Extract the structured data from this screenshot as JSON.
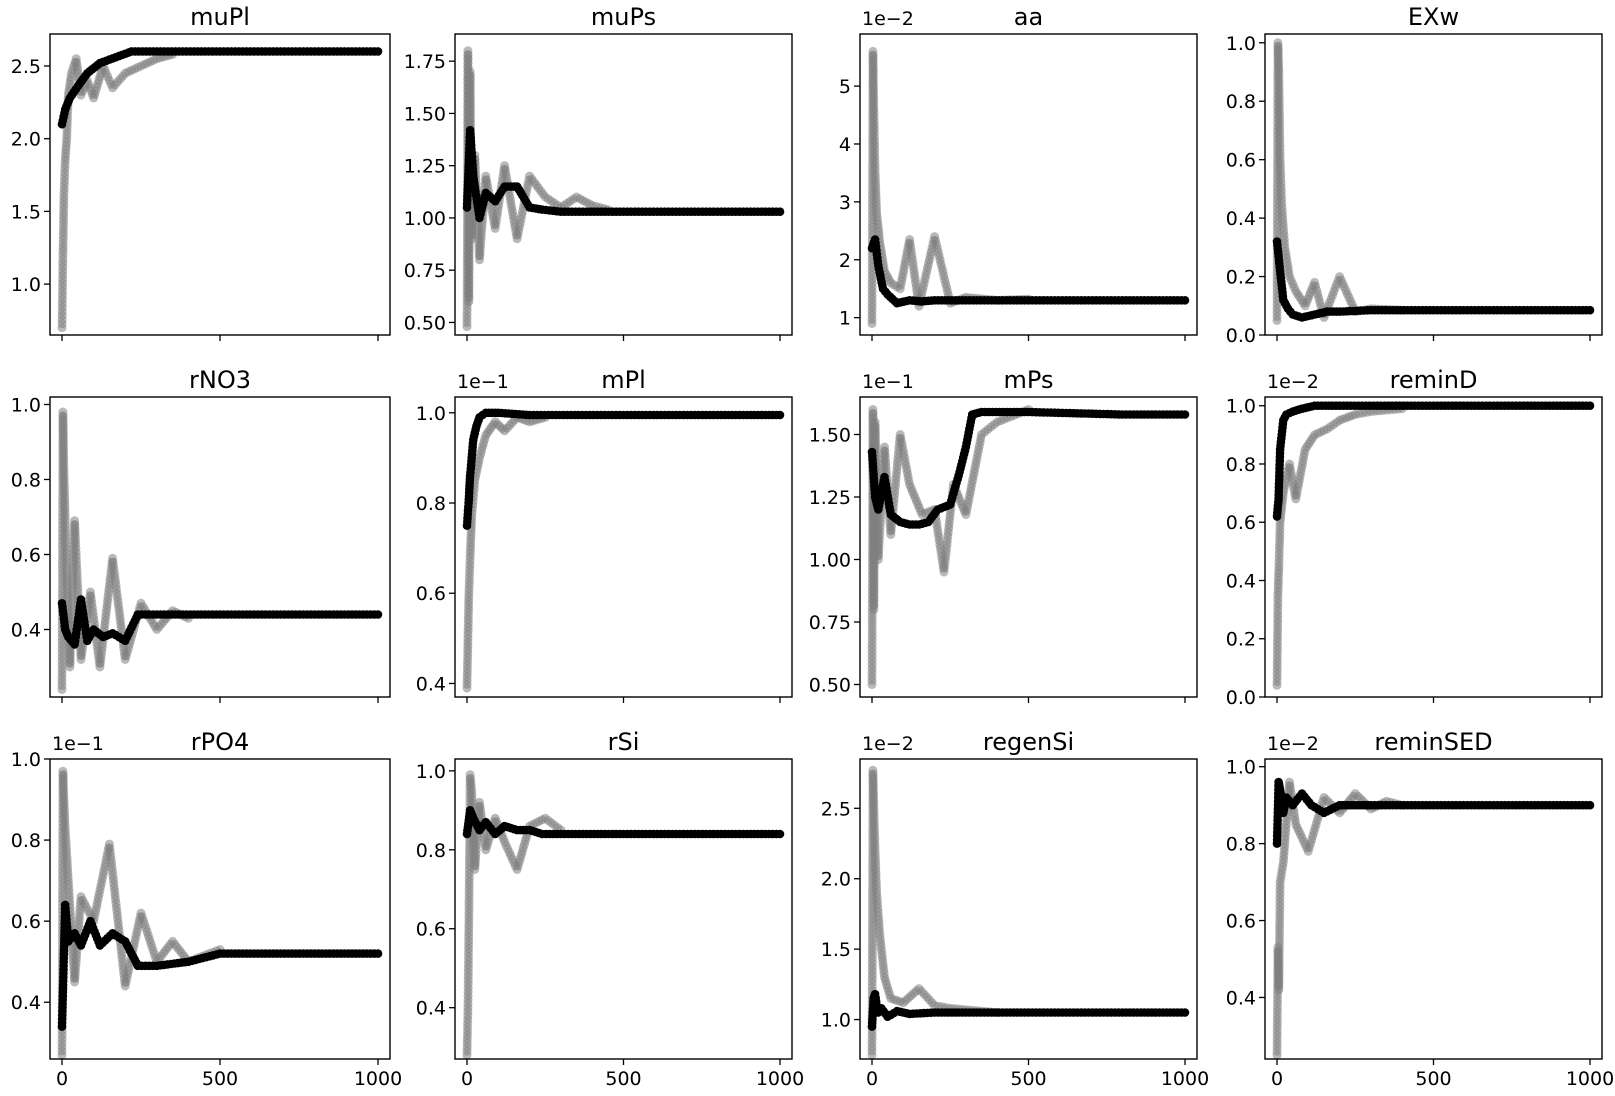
{
  "colors": {
    "background": "#ffffff",
    "best_series": "#000000",
    "samples": "#7f7f7f"
  },
  "chart_data": [
    {
      "type": "scatter",
      "title": "muPl",
      "multiplier": "",
      "xlim": [
        0,
        1000
      ],
      "ylim": [
        0.65,
        2.72
      ],
      "xticks": [
        0,
        500,
        1000
      ],
      "xticklabels": [
        "",
        "",
        ""
      ],
      "yticks": [
        1.0,
        1.5,
        2.0,
        2.5
      ],
      "best": {
        "x": [
          0,
          10,
          25,
          50,
          80,
          120,
          170,
          220,
          300,
          500,
          800,
          1000
        ],
        "y": [
          2.1,
          2.2,
          2.28,
          2.36,
          2.45,
          2.52,
          2.56,
          2.6,
          2.6,
          2.6,
          2.6,
          2.6
        ]
      },
      "samples": {
        "x": [
          0,
          3,
          6,
          10,
          15,
          20,
          30,
          45,
          60,
          80,
          100,
          130,
          160,
          200,
          250,
          300,
          350
        ],
        "y": [
          0.7,
          1.2,
          1.6,
          1.85,
          2.0,
          2.3,
          2.45,
          2.55,
          2.3,
          2.4,
          2.28,
          2.5,
          2.35,
          2.45,
          2.5,
          2.55,
          2.58
        ]
      }
    },
    {
      "type": "scatter",
      "title": "muPs",
      "multiplier": "",
      "xlim": [
        0,
        1000
      ],
      "ylim": [
        0.44,
        1.88
      ],
      "xticks": [
        0,
        500,
        1000
      ],
      "xticklabels": [
        "",
        "",
        ""
      ],
      "yticks": [
        0.5,
        0.75,
        1.0,
        1.25,
        1.5,
        1.75
      ],
      "best": {
        "x": [
          0,
          10,
          20,
          40,
          60,
          90,
          120,
          160,
          200,
          240,
          300,
          500,
          800,
          1000
        ],
        "y": [
          1.05,
          1.42,
          1.2,
          1.0,
          1.12,
          1.08,
          1.15,
          1.15,
          1.05,
          1.04,
          1.03,
          1.03,
          1.03,
          1.03
        ]
      },
      "samples": {
        "x": [
          0,
          3,
          6,
          10,
          15,
          25,
          40,
          60,
          90,
          120,
          160,
          200,
          250,
          300,
          350,
          400,
          450
        ],
        "y": [
          0.48,
          1.8,
          0.6,
          1.7,
          0.9,
          1.3,
          0.8,
          1.2,
          0.95,
          1.25,
          0.9,
          1.2,
          1.1,
          1.05,
          1.1,
          1.06,
          1.04
        ]
      }
    },
    {
      "type": "scatter",
      "title": "aa",
      "multiplier": "1e−2",
      "xlim": [
        0,
        1000
      ],
      "ylim": [
        0.7,
        5.9
      ],
      "xticks": [
        0,
        500,
        1000
      ],
      "xticklabels": [
        "",
        "",
        ""
      ],
      "yticks": [
        1,
        2,
        3,
        4,
        5
      ],
      "best": {
        "x": [
          0,
          10,
          20,
          35,
          50,
          80,
          120,
          160,
          200,
          300,
          500,
          800,
          1000
        ],
        "y": [
          2.2,
          2.35,
          1.9,
          1.5,
          1.4,
          1.25,
          1.3,
          1.28,
          1.3,
          1.3,
          1.3,
          1.3,
          1.3
        ]
      },
      "samples": {
        "x": [
          0,
          3,
          6,
          10,
          15,
          25,
          40,
          60,
          90,
          120,
          150,
          200,
          250,
          300,
          400,
          500
        ],
        "y": [
          0.9,
          5.6,
          4.6,
          3.5,
          2.8,
          2.3,
          1.8,
          1.6,
          1.5,
          2.35,
          1.2,
          2.4,
          1.25,
          1.35,
          1.3,
          1.32
        ]
      }
    },
    {
      "type": "scatter",
      "title": "EXw",
      "multiplier": "",
      "xlim": [
        0,
        1000
      ],
      "ylim": [
        0.0,
        1.03
      ],
      "xticks": [
        0,
        500,
        1000
      ],
      "xticklabels": [
        "",
        "",
        ""
      ],
      "yticks": [
        0.0,
        0.2,
        0.4,
        0.6,
        0.8,
        1.0
      ],
      "best": {
        "x": [
          0,
          10,
          20,
          35,
          50,
          80,
          120,
          160,
          200,
          300,
          500,
          800,
          1000
        ],
        "y": [
          0.32,
          0.22,
          0.12,
          0.09,
          0.07,
          0.06,
          0.07,
          0.08,
          0.08,
          0.085,
          0.085,
          0.085,
          0.085
        ]
      },
      "samples": {
        "x": [
          0,
          3,
          6,
          10,
          15,
          25,
          40,
          60,
          90,
          120,
          150,
          200,
          250,
          300,
          400
        ],
        "y": [
          0.05,
          1.0,
          0.9,
          0.6,
          0.45,
          0.3,
          0.2,
          0.15,
          0.1,
          0.18,
          0.06,
          0.2,
          0.08,
          0.09,
          0.085
        ]
      }
    },
    {
      "type": "scatter",
      "title": "rNO3",
      "multiplier": "",
      "xlim": [
        0,
        1000
      ],
      "ylim": [
        0.22,
        1.02
      ],
      "xticks": [
        0,
        500,
        1000
      ],
      "xticklabels": [
        "",
        "",
        ""
      ],
      "yticks": [
        0.4,
        0.6,
        0.8,
        1.0
      ],
      "best": {
        "x": [
          0,
          10,
          20,
          40,
          60,
          80,
          100,
          130,
          160,
          200,
          240,
          300,
          500,
          800,
          1000
        ],
        "y": [
          0.47,
          0.4,
          0.38,
          0.36,
          0.48,
          0.37,
          0.4,
          0.38,
          0.39,
          0.37,
          0.44,
          0.44,
          0.44,
          0.44,
          0.44
        ]
      },
      "samples": {
        "x": [
          0,
          3,
          6,
          10,
          15,
          25,
          40,
          60,
          90,
          120,
          160,
          200,
          250,
          300,
          350,
          400
        ],
        "y": [
          0.24,
          0.98,
          0.83,
          0.7,
          0.55,
          0.3,
          0.69,
          0.32,
          0.5,
          0.3,
          0.59,
          0.32,
          0.47,
          0.4,
          0.45,
          0.43
        ]
      }
    },
    {
      "type": "scatter",
      "title": "mPl",
      "multiplier": "1e−1",
      "xlim": [
        0,
        1000
      ],
      "ylim": [
        0.37,
        1.035
      ],
      "xticks": [
        0,
        500,
        1000
      ],
      "xticklabels": [
        "",
        "",
        ""
      ],
      "yticks": [
        0.4,
        0.6,
        0.8,
        1.0
      ],
      "best": {
        "x": [
          0,
          5,
          10,
          15,
          20,
          30,
          40,
          60,
          100,
          200,
          500,
          800,
          1000
        ],
        "y": [
          0.75,
          0.8,
          0.86,
          0.9,
          0.94,
          0.97,
          0.99,
          1.0,
          1.0,
          0.995,
          0.995,
          0.995,
          0.995
        ]
      },
      "samples": {
        "x": [
          0,
          3,
          6,
          10,
          15,
          25,
          40,
          60,
          90,
          120,
          160,
          200,
          250
        ],
        "y": [
          0.39,
          0.5,
          0.6,
          0.68,
          0.77,
          0.85,
          0.9,
          0.95,
          0.98,
          0.96,
          0.99,
          0.98,
          0.99
        ]
      }
    },
    {
      "type": "scatter",
      "title": "mPs",
      "multiplier": "1e−1",
      "xlim": [
        0,
        1000
      ],
      "ylim": [
        0.45,
        1.65
      ],
      "xticks": [
        0,
        500,
        1000
      ],
      "xticklabels": [
        "",
        "",
        ""
      ],
      "yticks": [
        0.5,
        0.75,
        1.0,
        1.25,
        1.5
      ],
      "best": {
        "x": [
          0,
          10,
          20,
          40,
          60,
          90,
          120,
          150,
          180,
          210,
          250,
          280,
          300,
          320,
          350,
          500,
          800,
          1000
        ],
        "y": [
          1.43,
          1.25,
          1.2,
          1.33,
          1.18,
          1.15,
          1.14,
          1.14,
          1.15,
          1.2,
          1.22,
          1.35,
          1.45,
          1.58,
          1.59,
          1.59,
          1.58,
          1.58
        ]
      },
      "samples": {
        "x": [
          0,
          3,
          6,
          10,
          20,
          40,
          60,
          90,
          120,
          160,
          200,
          230,
          260,
          300,
          350,
          400,
          500
        ],
        "y": [
          0.5,
          1.6,
          0.8,
          1.55,
          1.0,
          1.45,
          1.1,
          1.5,
          1.3,
          1.18,
          1.2,
          0.95,
          1.3,
          1.18,
          1.5,
          1.55,
          1.6
        ]
      }
    },
    {
      "type": "scatter",
      "title": "reminD",
      "multiplier": "1e−2",
      "xlim": [
        0,
        1000
      ],
      "ylim": [
        0.0,
        1.03
      ],
      "xticks": [
        0,
        500,
        1000
      ],
      "xticklabels": [
        "",
        "",
        ""
      ],
      "yticks": [
        0.0,
        0.2,
        0.4,
        0.6,
        0.8,
        1.0
      ],
      "best": {
        "x": [
          0,
          5,
          10,
          15,
          20,
          30,
          50,
          80,
          120,
          200,
          500,
          800,
          1000
        ],
        "y": [
          0.62,
          0.68,
          0.85,
          0.9,
          0.95,
          0.97,
          0.98,
          0.99,
          1.0,
          1.0,
          1.0,
          1.0,
          1.0
        ]
      },
      "samples": {
        "x": [
          0,
          3,
          6,
          10,
          20,
          40,
          60,
          90,
          120,
          160,
          200,
          250,
          300,
          400
        ],
        "y": [
          0.04,
          0.35,
          0.45,
          0.6,
          0.7,
          0.8,
          0.68,
          0.85,
          0.9,
          0.92,
          0.95,
          0.97,
          0.98,
          0.99
        ]
      }
    },
    {
      "type": "scatter",
      "title": "rPO4",
      "multiplier": "1e−1",
      "xlim": [
        0,
        1000
      ],
      "ylim": [
        0.26,
        1.0
      ],
      "xticks": [
        0,
        500,
        1000
      ],
      "xticklabels": [
        "0",
        "500",
        "1000"
      ],
      "yticks": [
        0.4,
        0.6,
        0.8,
        1.0
      ],
      "best": {
        "x": [
          0,
          10,
          20,
          40,
          60,
          90,
          120,
          160,
          200,
          240,
          300,
          400,
          500,
          800,
          1000
        ],
        "y": [
          0.34,
          0.64,
          0.55,
          0.57,
          0.54,
          0.6,
          0.54,
          0.57,
          0.55,
          0.49,
          0.49,
          0.5,
          0.52,
          0.52,
          0.52
        ]
      },
      "samples": {
        "x": [
          0,
          3,
          6,
          10,
          20,
          40,
          60,
          100,
          150,
          200,
          250,
          300,
          350,
          400,
          500
        ],
        "y": [
          0.27,
          0.97,
          0.9,
          0.83,
          0.7,
          0.45,
          0.66,
          0.6,
          0.79,
          0.44,
          0.62,
          0.5,
          0.55,
          0.5,
          0.53
        ]
      }
    },
    {
      "type": "scatter",
      "title": "rSi",
      "multiplier": "",
      "xlim": [
        0,
        1000
      ],
      "ylim": [
        0.27,
        1.03
      ],
      "xticks": [
        0,
        500,
        1000
      ],
      "xticklabels": [
        "0",
        "500",
        "1000"
      ],
      "yticks": [
        0.4,
        0.6,
        0.8,
        1.0
      ],
      "best": {
        "x": [
          0,
          10,
          20,
          40,
          60,
          90,
          120,
          160,
          200,
          240,
          300,
          500,
          800,
          1000
        ],
        "y": [
          0.84,
          0.9,
          0.88,
          0.85,
          0.87,
          0.84,
          0.86,
          0.85,
          0.85,
          0.84,
          0.84,
          0.84,
          0.84,
          0.84
        ]
      },
      "samples": {
        "x": [
          0,
          3,
          6,
          10,
          15,
          25,
          40,
          60,
          90,
          120,
          160,
          200,
          250,
          300
        ],
        "y": [
          0.28,
          0.4,
          0.62,
          0.99,
          0.95,
          0.75,
          0.92,
          0.8,
          0.88,
          0.82,
          0.75,
          0.86,
          0.88,
          0.85
        ]
      }
    },
    {
      "type": "scatter",
      "title": "regenSi",
      "multiplier": "1e−2",
      "xlim": [
        0,
        1000
      ],
      "ylim": [
        0.72,
        2.85
      ],
      "xticks": [
        0,
        500,
        1000
      ],
      "xticklabels": [
        "0",
        "500",
        "1000"
      ],
      "yticks": [
        1.0,
        1.5,
        2.0,
        2.5
      ],
      "best": {
        "x": [
          0,
          5,
          10,
          15,
          20,
          30,
          50,
          80,
          120,
          200,
          300,
          500,
          800,
          1000
        ],
        "y": [
          0.95,
          1.15,
          1.18,
          1.1,
          1.05,
          1.08,
          1.02,
          1.06,
          1.04,
          1.05,
          1.05,
          1.05,
          1.05,
          1.05
        ]
      },
      "samples": {
        "x": [
          0,
          3,
          6,
          10,
          15,
          25,
          40,
          60,
          100,
          150,
          200,
          250,
          300,
          400
        ],
        "y": [
          0.75,
          2.77,
          2.5,
          2.2,
          1.9,
          1.6,
          1.3,
          1.15,
          1.12,
          1.22,
          1.1,
          1.08,
          1.07,
          1.05
        ]
      }
    },
    {
      "type": "scatter",
      "title": "reminSED",
      "multiplier": "1e−2",
      "xlim": [
        0,
        1000
      ],
      "ylim": [
        0.24,
        1.02
      ],
      "xticks": [
        0,
        500,
        1000
      ],
      "xticklabels": [
        "0",
        "500",
        "1000"
      ],
      "yticks": [
        0.4,
        0.6,
        0.8,
        1.0
      ],
      "best": {
        "x": [
          0,
          5,
          10,
          20,
          30,
          50,
          80,
          110,
          150,
          200,
          250,
          300,
          500,
          800,
          1000
        ],
        "y": [
          0.8,
          0.96,
          0.94,
          0.88,
          0.92,
          0.9,
          0.93,
          0.9,
          0.88,
          0.9,
          0.9,
          0.9,
          0.9,
          0.9,
          0.9
        ]
      },
      "samples": {
        "x": [
          0,
          3,
          6,
          10,
          20,
          40,
          60,
          100,
          150,
          200,
          250,
          300,
          350,
          400
        ],
        "y": [
          0.25,
          0.53,
          0.42,
          0.7,
          0.75,
          0.96,
          0.85,
          0.78,
          0.92,
          0.88,
          0.93,
          0.89,
          0.91,
          0.9
        ]
      }
    }
  ]
}
